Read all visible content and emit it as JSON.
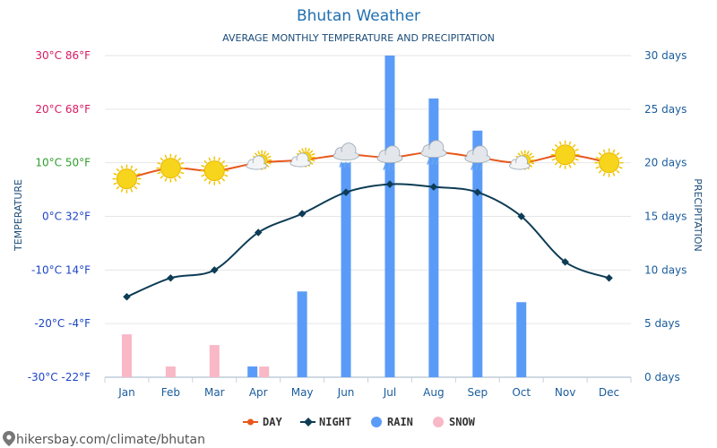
{
  "header": {
    "title": "Bhutan Weather",
    "subtitle": "AVERAGE MONTHLY TEMPERATURE AND PRECIPITATION"
  },
  "axes": {
    "left_title": "TEMPERATURE",
    "right_title": "PRECIPITATION",
    "left_ticks": [
      "-30°C -22°F",
      "-20°C -4°F",
      "-10°C 14°F",
      "0°C 32°F",
      "10°C 50°F",
      "20°C 68°F",
      "30°C 86°F"
    ],
    "right_ticks": [
      "0 days",
      "5 days",
      "10 days",
      "15 days",
      "20 days",
      "25 days",
      "30 days"
    ]
  },
  "legend": {
    "day": "DAY",
    "night": "NIGHT",
    "rain": "RAIN",
    "snow": "SNOW"
  },
  "footer": {
    "source": "hikersbay.com/climate/bhutan"
  },
  "colors": {
    "day": "#e8571b",
    "night": "#0d3c55",
    "rain": "#5b9bf8",
    "snow": "#f8b8c6",
    "tick_hot": "#d81b60",
    "tick_warm": "#2e9e2e",
    "tick_cold": "#1c45c6"
  },
  "chart_data": {
    "type": "line+bar",
    "categories": [
      "Jan",
      "Feb",
      "Mar",
      "Apr",
      "May",
      "Jun",
      "Jul",
      "Aug",
      "Sep",
      "Oct",
      "Nov",
      "Dec"
    ],
    "temperature_ylim": [
      -30,
      30
    ],
    "precipitation_ylim": [
      0,
      30
    ],
    "series": [
      {
        "name": "DAY",
        "axis": "temperature",
        "unit": "°C",
        "values": [
          7,
          9,
          8.5,
          10,
          10.5,
          11.5,
          11,
          12,
          11,
          10,
          11.5,
          10
        ]
      },
      {
        "name": "NIGHT",
        "axis": "temperature",
        "unit": "°C",
        "values": [
          -15,
          -11.5,
          -10,
          -3,
          0.5,
          4.5,
          6,
          5.5,
          4.5,
          0,
          -8.5,
          -11.5
        ]
      },
      {
        "name": "RAIN",
        "axis": "precipitation",
        "unit": "days",
        "values": [
          0,
          0,
          0,
          1,
          8,
          20,
          30,
          26,
          23,
          7,
          0,
          0
        ]
      },
      {
        "name": "SNOW",
        "axis": "precipitation",
        "unit": "days",
        "values": [
          4,
          1,
          3,
          1,
          0,
          0,
          0,
          0,
          0,
          0,
          0,
          0
        ]
      }
    ],
    "weather_icons": [
      "sun-icon",
      "sun-icon",
      "sun-icon",
      "partly-cloudy-icon",
      "partly-cloudy-icon",
      "cloud-rain-icon",
      "cloud-rain-icon",
      "cloud-rain-icon",
      "cloud-rain-icon",
      "partly-cloudy-icon",
      "sun-icon",
      "sun-icon"
    ],
    "grid": true,
    "legend_position": "bottom-center"
  }
}
